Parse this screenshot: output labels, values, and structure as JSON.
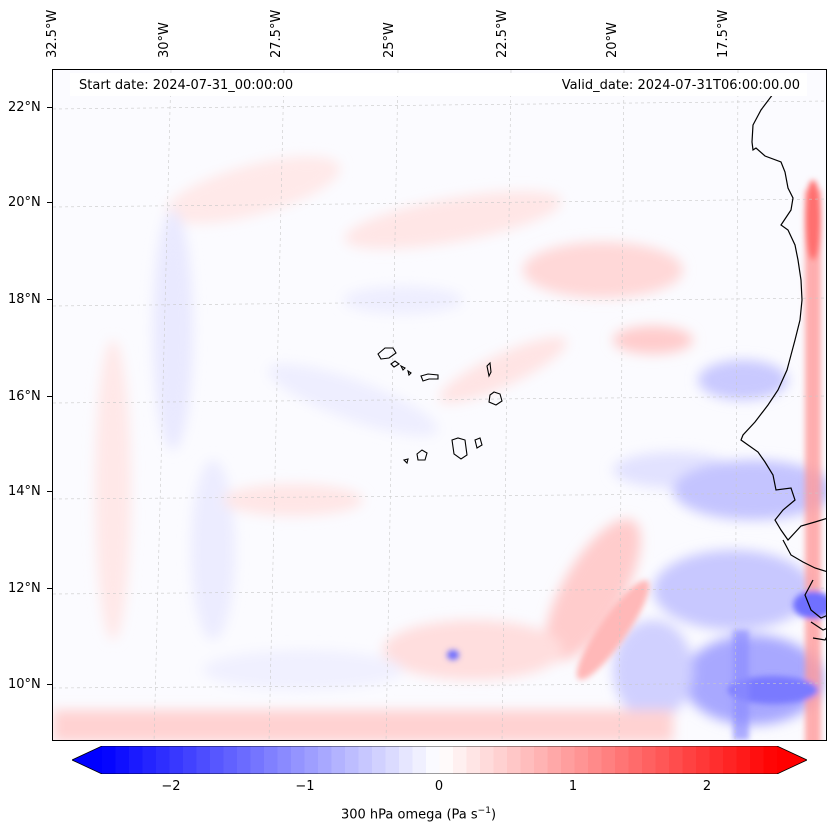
{
  "header": {
    "start_date": "Start date: 2024-07-31_00:00:00",
    "valid_date": "Valid_date: 2024-07-31T06:00:00.00"
  },
  "map": {
    "lat_labels": [
      "22°N",
      "20°N",
      "18°N",
      "16°N",
      "14°N",
      "12°N",
      "10°N"
    ],
    "lon_labels": [
      "32.5°W",
      "30°W",
      "27.5°W",
      "25°W",
      "22.5°W",
      "20°W",
      "17.5°W"
    ],
    "gridlines": true,
    "lat_range": [
      8.8,
      22.8
    ],
    "lon_range": [
      -33.0,
      -16.0
    ]
  },
  "colorbar": {
    "ticks": [
      "−2",
      "−1",
      "0",
      "1",
      "2"
    ],
    "range": [
      -2.5,
      2.5
    ],
    "label_prefix": "300 hPa omega (Pa s",
    "label_exp": "−1",
    "label_suffix": ")",
    "colors": {
      "negative": "#0000ff",
      "zero": "#ffffff",
      "positive": "#ff0000"
    }
  }
}
